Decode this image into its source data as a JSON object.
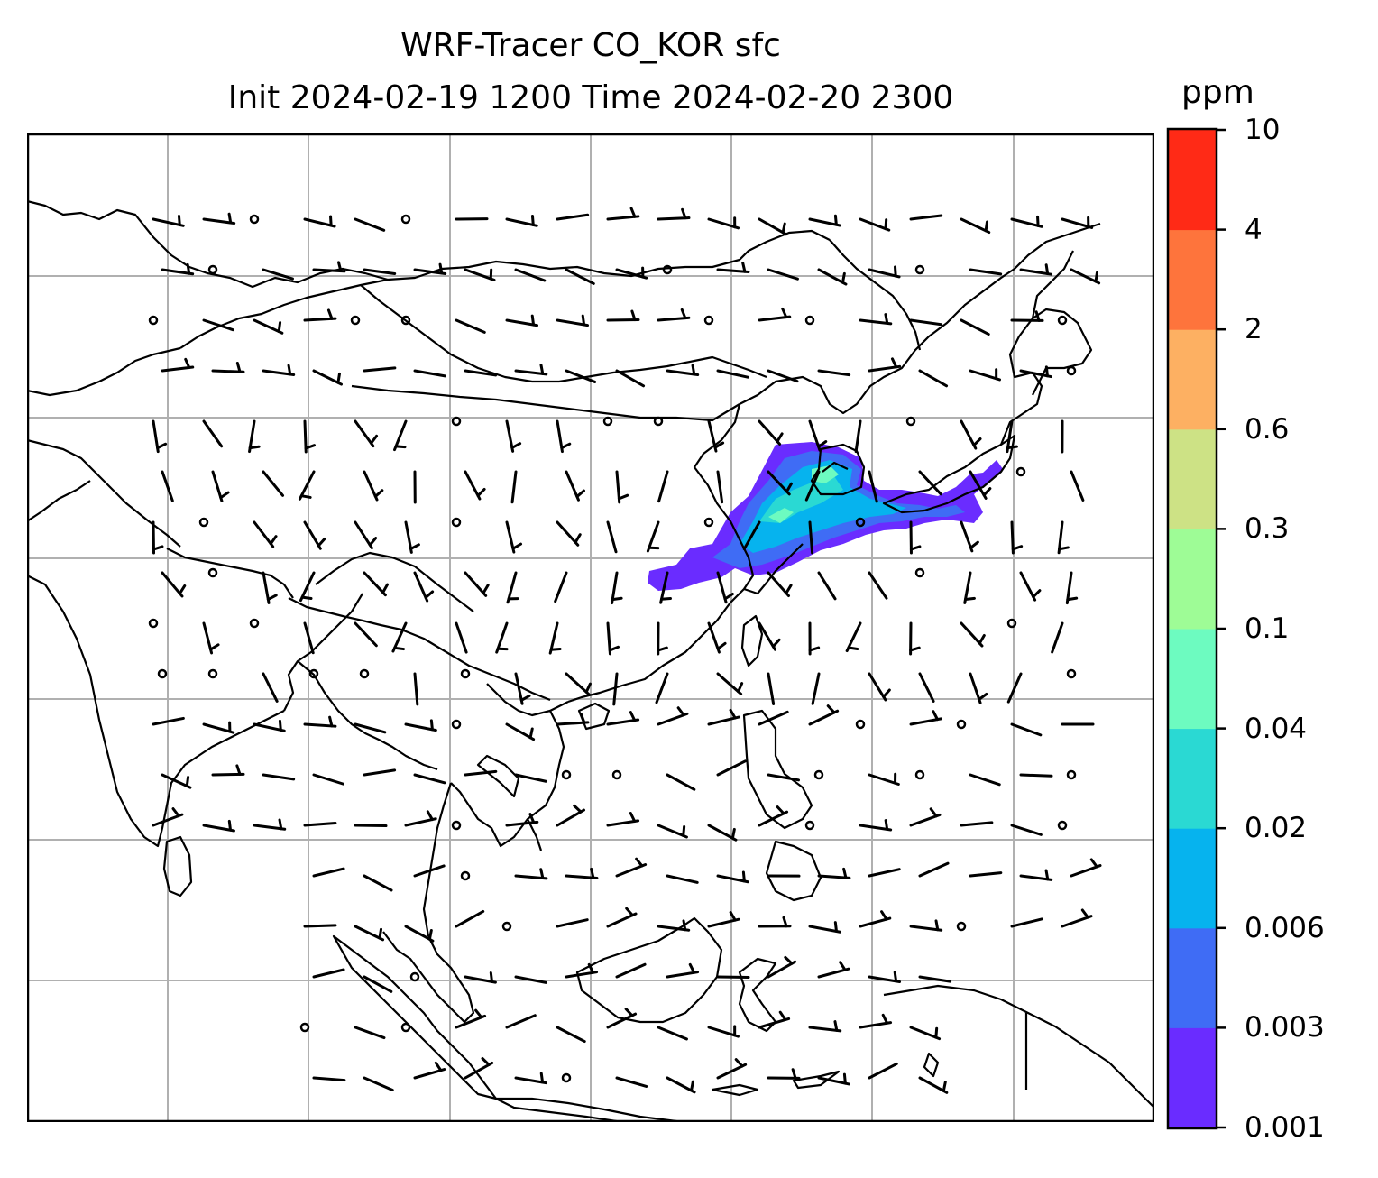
{
  "title": {
    "line1": "WRF-Tracer CO_KOR sfc",
    "line2": "Init 2024-02-19 1200 Time 2024-02-20 2300"
  },
  "colorbar": {
    "unit": "ppm",
    "levels": [
      "0.001",
      "0.003",
      "0.006",
      "0.02",
      "0.04",
      "0.1",
      "0.3",
      "0.6",
      "2",
      "4",
      "10"
    ],
    "colors": [
      "#6a2cff",
      "#3f6cf5",
      "#06b3ee",
      "#2ad9d3",
      "#6dfbc0",
      "#9efc96",
      "#cde285",
      "#fdb062",
      "#fe743c",
      "#ff2a16"
    ]
  },
  "map": {
    "region": "East and Southeast Asia",
    "gridlines": true,
    "coastline_color": "#000000",
    "grid_color": "#b0b0b0",
    "wind_barbs": true
  }
}
